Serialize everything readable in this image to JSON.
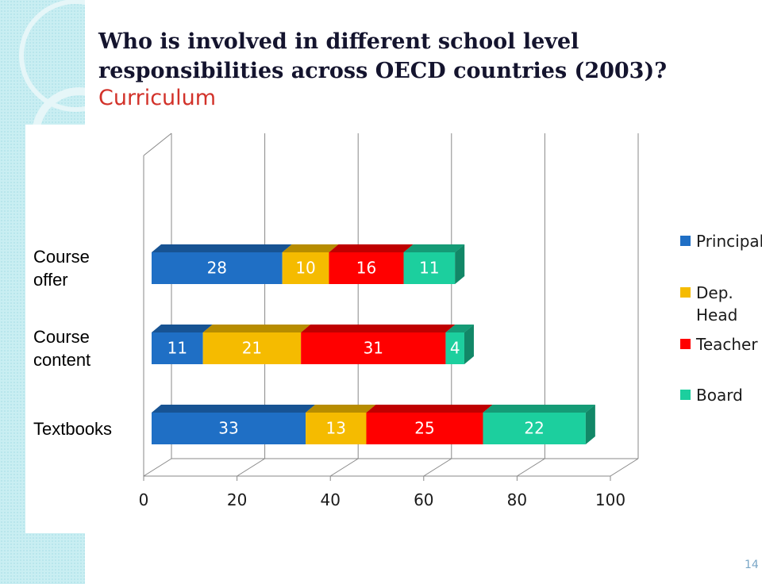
{
  "chart_data": {
    "type": "stacked-bar-3d",
    "title": "Who is involved in different school level responsibilities across OECD countries (2003)?",
    "subtitle": "Curriculum",
    "categories": [
      "Course offer",
      "Course content",
      "Textbooks"
    ],
    "series": [
      {
        "name": "Principal",
        "color": "#1f6fc5",
        "values": [
          28,
          11,
          33
        ]
      },
      {
        "name": "Dep. Head",
        "color": "#f5bb00",
        "values": [
          10,
          21,
          13
        ]
      },
      {
        "name": "Teacher",
        "color": "#ff0000",
        "values": [
          16,
          31,
          25
        ]
      },
      {
        "name": "Board",
        "color": "#1ccf9e",
        "values": [
          11,
          4,
          22
        ]
      }
    ],
    "xlim": [
      0,
      100
    ],
    "xticks": [
      0,
      20,
      40,
      60,
      80,
      100
    ],
    "grid": true,
    "legend": "right"
  },
  "page_number": "14"
}
